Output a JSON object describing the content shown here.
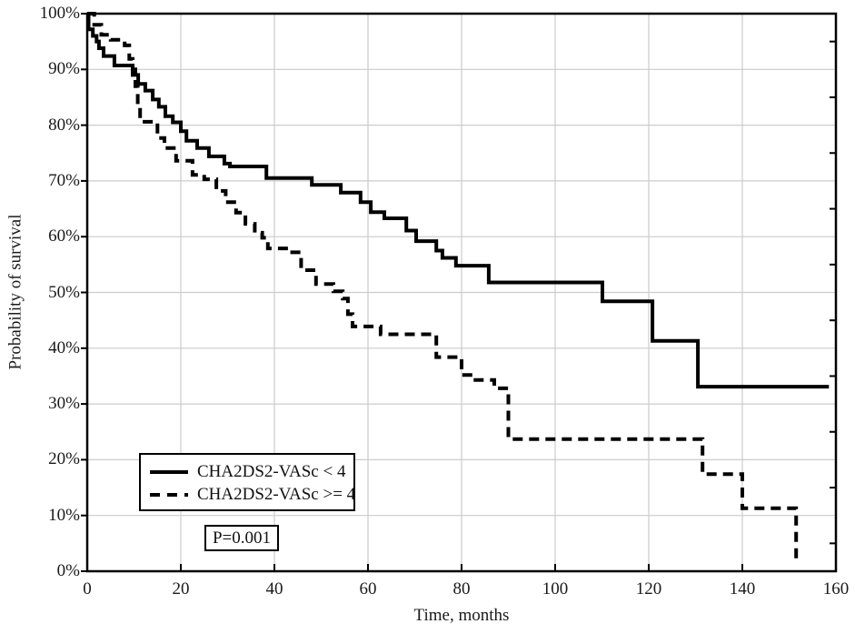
{
  "y_axis": {
    "title": "Probability of survival",
    "tick_values": [
      0,
      10,
      20,
      30,
      40,
      50,
      60,
      70,
      80,
      90,
      100
    ],
    "tick_labels": [
      "0%",
      "10%",
      "20%",
      "30%",
      "40%",
      "50%",
      "60%",
      "70%",
      "80%",
      "90%",
      "100%"
    ]
  },
  "x_axis": {
    "title": "Time, months",
    "tick_values": [
      0,
      20,
      40,
      60,
      80,
      100,
      120,
      140,
      160
    ],
    "tick_labels": [
      "0",
      "20",
      "40",
      "60",
      "80",
      "100",
      "120",
      "140",
      "160"
    ]
  },
  "legend": {
    "items": [
      {
        "label": "CHA2DS2-VASc < 4",
        "line_style": "solid"
      },
      {
        "label": "CHA2DS2-VASc >= 4",
        "line_style": "dashed"
      }
    ]
  },
  "annotation": {
    "p_value": "P=0.001"
  },
  "colors": {
    "curve": "#000000",
    "frame": "#000000",
    "grid": "#cccccc",
    "background": "#ffffff"
  },
  "chart_data": {
    "type": "line",
    "subtype": "kaplan-meier-step",
    "title": "",
    "xlabel": "Time, months",
    "ylabel": "Probability of survival",
    "xlim": [
      0,
      160
    ],
    "ylim": [
      0,
      100
    ],
    "x_ticks": [
      0,
      20,
      40,
      60,
      80,
      100,
      120,
      140,
      160
    ],
    "y_ticks_percent": [
      0,
      10,
      20,
      30,
      40,
      50,
      60,
      70,
      80,
      90,
      100
    ],
    "grid": "on",
    "legend_position": "lower-left",
    "annotations": [
      {
        "text": "P=0.001"
      }
    ],
    "series": [
      {
        "name": "CHA2DS2-VASc < 4",
        "line_style": "solid",
        "points_time_survival_percent": [
          [
            0,
            100
          ],
          [
            0.3,
            97.2
          ],
          [
            1.2,
            96
          ],
          [
            2,
            95
          ],
          [
            2.5,
            93.8
          ],
          [
            3.5,
            92.4
          ],
          [
            5.8,
            90.7
          ],
          [
            9.7,
            89
          ],
          [
            10.9,
            87.4
          ],
          [
            12.4,
            86.2
          ],
          [
            14,
            84.6
          ],
          [
            15.3,
            83.3
          ],
          [
            16.7,
            81.6
          ],
          [
            18.3,
            80.5
          ],
          [
            20,
            78.9
          ],
          [
            21.2,
            77.2
          ],
          [
            23.5,
            75.9
          ],
          [
            26,
            74.4
          ],
          [
            29.3,
            73.1
          ],
          [
            30.5,
            72.6
          ],
          [
            38.3,
            70.5
          ],
          [
            48,
            69.3
          ],
          [
            54.2,
            67.9
          ],
          [
            58.4,
            66.2
          ],
          [
            60.6,
            64.4
          ],
          [
            63.5,
            63.3
          ],
          [
            68.2,
            61.1
          ],
          [
            70.3,
            59.2
          ],
          [
            74.6,
            57.5
          ],
          [
            75.9,
            56.2
          ],
          [
            78.8,
            54.8
          ],
          [
            85.8,
            51.8
          ],
          [
            110.1,
            48.4
          ],
          [
            120.8,
            41.3
          ],
          [
            130.5,
            33.1
          ],
          [
            158.5,
            33.1
          ]
        ]
      },
      {
        "name": "CHA2DS2-VASc >= 4",
        "line_style": "dashed",
        "points_time_survival_percent": [
          [
            0,
            100
          ],
          [
            1.5,
            98
          ],
          [
            3,
            96.2
          ],
          [
            5,
            95.3
          ],
          [
            8,
            94.3
          ],
          [
            9,
            91.9
          ],
          [
            9.7,
            90
          ],
          [
            10.3,
            87
          ],
          [
            10.8,
            83.5
          ],
          [
            11.3,
            80.6
          ],
          [
            15,
            77.7
          ],
          [
            16.5,
            75.9
          ],
          [
            19,
            73.6
          ],
          [
            22.5,
            71.1
          ],
          [
            25,
            70.3
          ],
          [
            27.6,
            68.2
          ],
          [
            29.6,
            66.2
          ],
          [
            31.8,
            64.3
          ],
          [
            33.8,
            62.3
          ],
          [
            35.8,
            60.7
          ],
          [
            37.4,
            59.8
          ],
          [
            38.6,
            57.9
          ],
          [
            43,
            57.2
          ],
          [
            45.7,
            54
          ],
          [
            48.9,
            51.5
          ],
          [
            52.6,
            50.2
          ],
          [
            54.6,
            48.9
          ],
          [
            55.7,
            46.1
          ],
          [
            56.7,
            43.9
          ],
          [
            62.7,
            42.5
          ],
          [
            74.6,
            38.4
          ],
          [
            80,
            35.2
          ],
          [
            82.3,
            34.3
          ],
          [
            87,
            32.8
          ],
          [
            90,
            23.7
          ],
          [
            131.5,
            17.4
          ],
          [
            140,
            11.3
          ],
          [
            151.5,
            1.5
          ]
        ]
      }
    ]
  }
}
